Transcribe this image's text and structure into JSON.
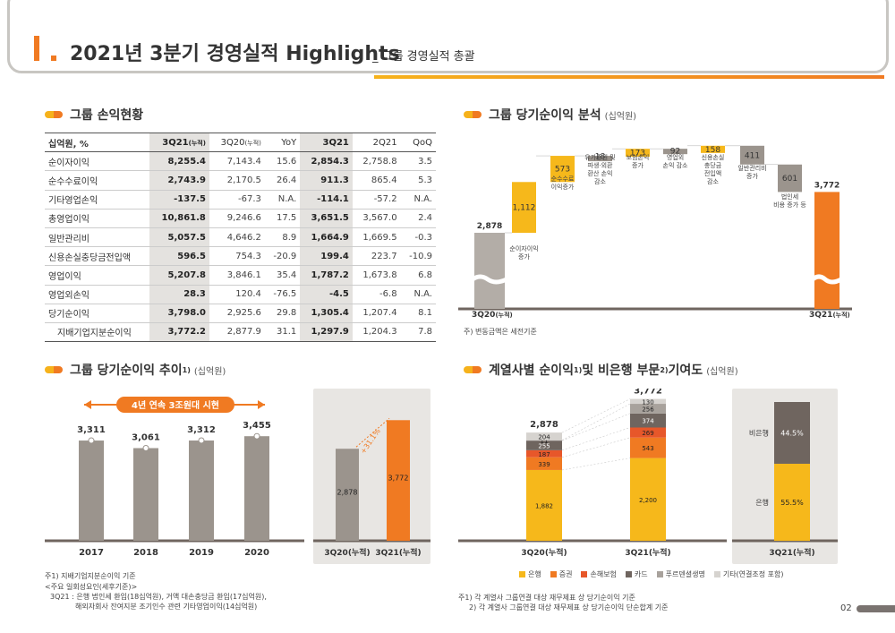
{
  "header": {
    "title": "2021년 3분기 경영실적 Highlights",
    "subtitle": "_ 그룹 경영실적 총괄"
  },
  "sections": {
    "pl": "그룹 손익현황",
    "ni_analysis": "그룹 당기순이익 분석",
    "ni_analysis_unit": "(십억원)",
    "ni_trend": "그룹 당기순이익 추이",
    "ni_trend_sup": "1)",
    "ni_trend_unit": "(십억원)",
    "contrib": "계열사별 순이익",
    "contrib_sup1": "1)",
    "contrib_mid": " 및 비은행 부문",
    "contrib_sup2": "2)",
    "contrib_end": "기여도",
    "contrib_unit": "(십억원)"
  },
  "pl_table": {
    "headers": [
      "십억원, %",
      "3Q21",
      "(누적)",
      "3Q20",
      "(누적)",
      "YoY",
      "3Q21",
      "2Q21",
      "QoQ"
    ],
    "rows": [
      [
        "순이자이익",
        "8,255.4",
        "7,143.4",
        "15.6",
        "2,854.3",
        "2,758.8",
        "3.5"
      ],
      [
        "순수수료이익",
        "2,743.9",
        "2,170.5",
        "26.4",
        "911.3",
        "865.4",
        "5.3"
      ],
      [
        "기타영업손익",
        "-137.5",
        "-67.3",
        "N.A.",
        "-114.1",
        "-57.2",
        "N.A."
      ],
      [
        "총영업이익",
        "10,861.8",
        "9,246.6",
        "17.5",
        "3,651.5",
        "3,567.0",
        "2.4"
      ],
      [
        "일반관리비",
        "5,057.5",
        "4,646.2",
        "8.9",
        "1,664.9",
        "1,669.5",
        "-0.3"
      ],
      [
        "신용손실충당금전입액",
        "596.5",
        "754.3",
        "-20.9",
        "199.4",
        "223.7",
        "-10.9"
      ],
      [
        "영업이익",
        "5,207.8",
        "3,846.1",
        "35.4",
        "1,787.2",
        "1,673.8",
        "6.8"
      ],
      [
        "영업외손익",
        "28.3",
        "120.4",
        "-76.5",
        "-4.5",
        "-6.8",
        "N.A."
      ],
      [
        "당기순이익",
        "3,798.0",
        "2,925.6",
        "29.8",
        "1,305.4",
        "1,207.4",
        "8.1"
      ],
      [
        "지배기업지분순이익",
        "3,772.2",
        "2,877.9",
        "31.1",
        "1,297.9",
        "1,204.3",
        "7.8"
      ]
    ]
  },
  "chart_data": [
    {
      "type": "bar",
      "title": "그룹 당기순이익 분석",
      "categories": [
        "3Q20(누적)",
        "순이자이익 증가",
        "순수수료이익증가",
        "유가증권 및 파생·외환 환산 손익 감소",
        "보험손익 증가",
        "영업외 손익 감소",
        "신용손실 충당금 전입액 감소",
        "일반관리비 증가",
        "법인세 비용 증가 등",
        "3Q21(누적)"
      ],
      "values": [
        2878,
        1112,
        573,
        -18,
        173,
        -92,
        158,
        -411,
        -601,
        3772
      ],
      "labels": [
        "2,878",
        "1,112",
        "573",
        "18",
        "173",
        "92",
        "158",
        "411",
        "601",
        "3,772"
      ],
      "start_label": "3Q20",
      "start_sub": "(누적)",
      "end_label": "3Q21",
      "end_sub": "(누적)",
      "note": "주) 변동금액은 세전기준"
    },
    {
      "type": "bar",
      "title": "그룹 당기순이익 추이",
      "banner": "4년 연속 3조원대 시현",
      "categories": [
        "2017",
        "2018",
        "2019",
        "2020"
      ],
      "values": [
        3311,
        3061,
        3312,
        3455
      ],
      "labels": [
        "3,311",
        "3,061",
        "3,312",
        "3,455"
      ],
      "ylim": [
        0,
        4200
      ]
    },
    {
      "type": "bar",
      "categories": [
        "3Q20(누적)",
        "3Q21(누적)"
      ],
      "values": [
        2878,
        3772
      ],
      "labels": [
        "2,878",
        "3,772"
      ],
      "growth": "+31.1%"
    },
    {
      "type": "bar",
      "title": "계열사별 순이익 및 비은행 부문 기여도",
      "categories": [
        "3Q20(누적)",
        "3Q21(누적)"
      ],
      "totals": [
        "2,878",
        "3,772"
      ],
      "series": [
        {
          "name": "은행",
          "color": "#f6b81b",
          "values": [
            1882,
            2200
          ]
        },
        {
          "name": "증권",
          "color": "#f07a22",
          "values": [
            339,
            543
          ]
        },
        {
          "name": "손해보험",
          "color": "#e7572a",
          "values": [
            187,
            269
          ]
        },
        {
          "name": "카드",
          "color": "#6f655f",
          "values": [
            255,
            374
          ]
        },
        {
          "name": "푸르덴셜생명",
          "color": "#a8a29c",
          "values": [
            11,
            256
          ]
        },
        {
          "name": "기타(연결조정 포함)",
          "color": "#d6d3cf",
          "values": [
            204,
            130
          ]
        }
      ]
    },
    {
      "type": "bar",
      "categories": [
        "3Q21(누적)"
      ],
      "series": [
        {
          "name": "은행",
          "values": [
            55.5
          ]
        },
        {
          "name": "비은행",
          "values": [
            44.5
          ]
        }
      ],
      "labels": [
        "55.5%",
        "44.5%"
      ]
    }
  ],
  "notes": {
    "trend_note1": "주1) 지배기업지분순이익 기준",
    "trend_note2": "<주요 일회성요인(세후기준)>",
    "trend_note3": "3Q21 : 은행 법인세 환입(18십억원), 거액 대손충당금 환입(17십억원),",
    "trend_note4": "해외자회사 잔여지분 조기인수 관련 기타영업이익(14십억원)",
    "contrib_note1": "주1) 각 계열사 그룹연결 대상 재무제표 상 당기순이익 기준",
    "contrib_note2": "2) 각 계열사 그룹연결 대상 재무제표 상 당기순이익 단순합계 기준"
  },
  "page_number": "02",
  "colors": {
    "accent": "#f07a22",
    "yellow": "#f6b81b",
    "gray": "#9b948d",
    "dark": "#6f655f"
  }
}
